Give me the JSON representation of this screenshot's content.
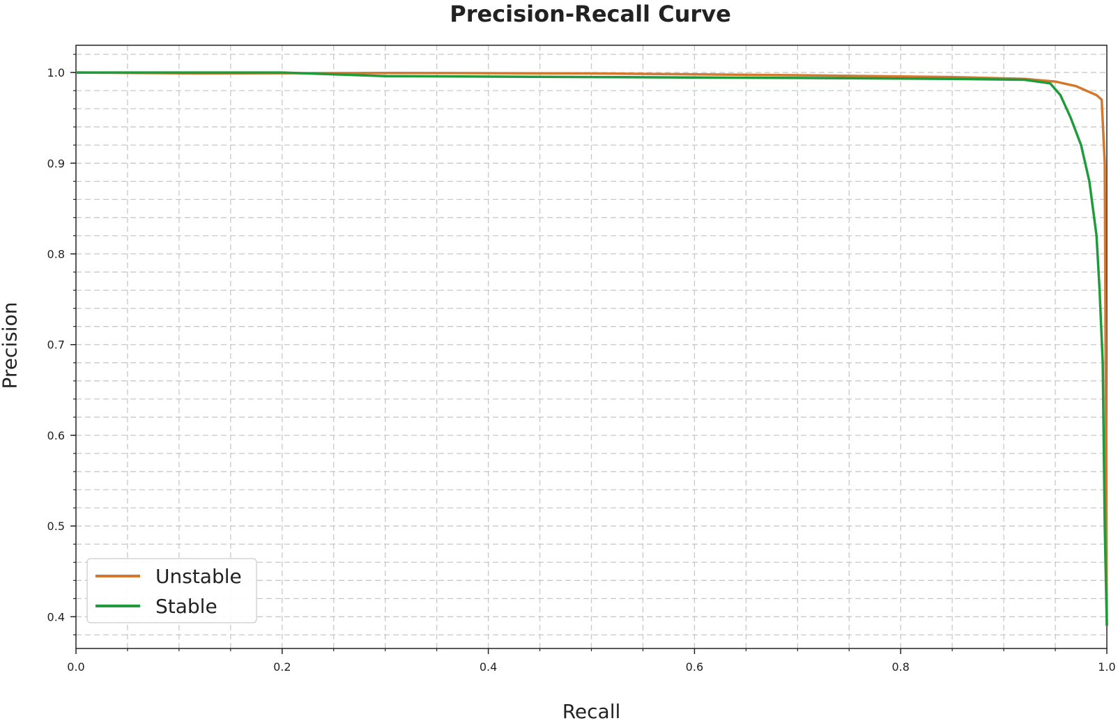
{
  "chart_data": {
    "type": "line",
    "title": "Precision-Recall Curve",
    "xlabel": "Recall",
    "ylabel": "Precision",
    "xlim": [
      0.0,
      1.0
    ],
    "ylim": [
      0.365,
      1.03
    ],
    "xticks": [
      0.0,
      0.2,
      0.4,
      0.6,
      0.8,
      1.0
    ],
    "xtick_labels": [
      "0.0",
      "0.2",
      "0.4",
      "0.6",
      "0.8",
      "1.0"
    ],
    "yticks": [
      0.4,
      0.5,
      0.6,
      0.7,
      0.8,
      0.9,
      1.0
    ],
    "ytick_labels": [
      "0.4",
      "0.5",
      "0.6",
      "0.7",
      "0.8",
      "0.9",
      "1.0"
    ],
    "grid": true,
    "legend_position": "bottom-left",
    "series": [
      {
        "name": "Unstable",
        "color": "#d4782d",
        "x": [
          0.0,
          0.12,
          0.3,
          0.5,
          0.7,
          0.85,
          0.92,
          0.95,
          0.97,
          0.98,
          0.99,
          0.995,
          0.998,
          1.0
        ],
        "y": [
          1.0,
          0.999,
          0.9995,
          0.999,
          0.997,
          0.995,
          0.993,
          0.99,
          0.985,
          0.98,
          0.975,
          0.97,
          0.9,
          0.39
        ]
      },
      {
        "name": "Stable",
        "color": "#1f9b3b",
        "x": [
          0.0,
          0.2,
          0.3,
          0.5,
          0.7,
          0.85,
          0.92,
          0.945,
          0.955,
          0.965,
          0.975,
          0.983,
          0.99,
          0.993,
          0.996,
          0.998,
          1.0
        ],
        "y": [
          1.0,
          1.0,
          0.996,
          0.995,
          0.994,
          0.993,
          0.992,
          0.988,
          0.975,
          0.95,
          0.92,
          0.88,
          0.82,
          0.76,
          0.68,
          0.5,
          0.39
        ]
      }
    ]
  }
}
